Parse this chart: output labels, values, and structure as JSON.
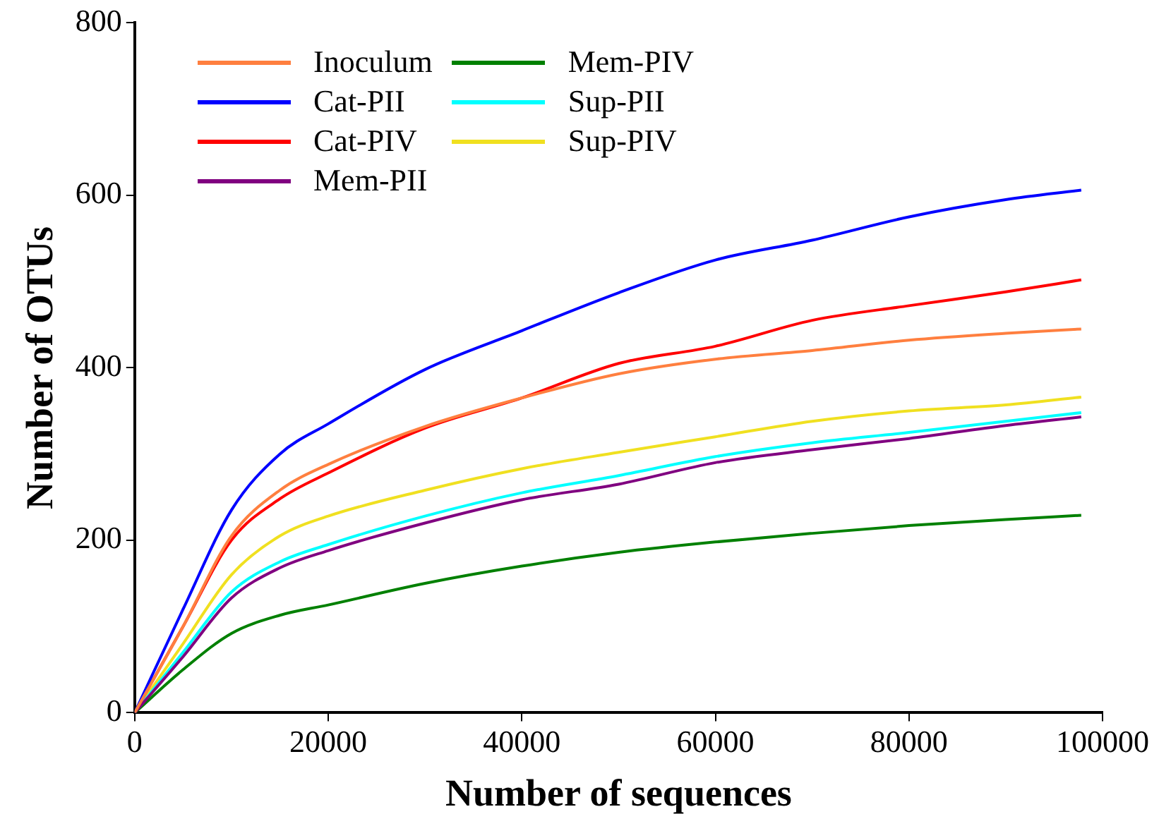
{
  "chart_data": {
    "type": "line",
    "xlabel": "Number of sequences",
    "ylabel": "Number of OTUs",
    "x": [
      0,
      5000,
      10000,
      15000,
      20000,
      30000,
      40000,
      50000,
      60000,
      70000,
      80000,
      90000,
      97800
    ],
    "series": [
      {
        "name": "Inoculum",
        "color": "#ff7f3f",
        "values": [
          0,
          100,
          205,
          258,
          288,
          332,
          365,
          393,
          410,
          420,
          432,
          440,
          445
        ]
      },
      {
        "name": "Cat-PII",
        "color": "#0000ff",
        "values": [
          0,
          120,
          235,
          300,
          335,
          398,
          443,
          487,
          525,
          548,
          575,
          595,
          606
        ]
      },
      {
        "name": "Cat-PIV",
        "color": "#ff0000",
        "values": [
          0,
          100,
          200,
          248,
          278,
          330,
          365,
          405,
          425,
          455,
          472,
          488,
          502
        ]
      },
      {
        "name": "Mem-PII",
        "color": "#800080",
        "values": [
          0,
          65,
          133,
          168,
          188,
          220,
          247,
          265,
          290,
          305,
          318,
          333,
          343
        ]
      },
      {
        "name": "Mem-PIV",
        "color": "#008000",
        "values": [
          0,
          50,
          92,
          113,
          125,
          150,
          170,
          186,
          198,
          208,
          217,
          224,
          229
        ]
      },
      {
        "name": "Sup-PII",
        "color": "#00ffff",
        "values": [
          0,
          70,
          140,
          175,
          195,
          228,
          255,
          275,
          297,
          313,
          325,
          338,
          348
        ]
      },
      {
        "name": "Sup-PIV",
        "color": "#f0e020",
        "values": [
          0,
          80,
          160,
          205,
          228,
          258,
          283,
          302,
          320,
          338,
          350,
          357,
          366
        ]
      }
    ],
    "xlim": [
      0,
      100000
    ],
    "xticks": [
      0,
      20000,
      40000,
      60000,
      80000,
      100000
    ],
    "ylim": [
      0,
      800
    ],
    "yticks": [
      0,
      200,
      400,
      600,
      800
    ],
    "grid": false,
    "legend": "top left",
    "marker": "none",
    "line_style": "solid"
  }
}
